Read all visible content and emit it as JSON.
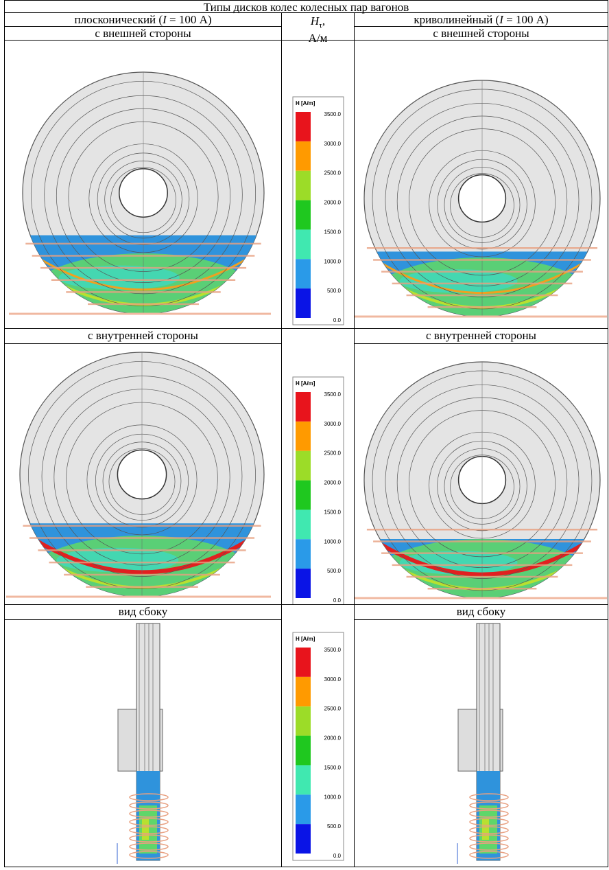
{
  "table": {
    "title": "Типы дисков колес колесных пар вагонов",
    "left_header": {
      "before": "плосконический (",
      "italic": "I",
      "after": " = 100 А)"
    },
    "right_header": {
      "before": "криволинейный (",
      "italic": "I",
      "after": " = 100 А)"
    },
    "middle_header": {
      "symbol": "H",
      "subscript": "τ",
      "after": ",",
      "unit": "А/м"
    },
    "rows": [
      {
        "left": "с внешней стороны",
        "right": "с внешней стороны"
      },
      {
        "left": "с внутренней стороны",
        "right": "с внутренней стороны"
      },
      {
        "left": "вид сбоку",
        "right": "вид сбоку"
      }
    ],
    "legends": [
      {
        "title": "H [A/m]",
        "labels": [
          "3500.0",
          "3000.0",
          "2500.0",
          "2000.0",
          "1500.0",
          "1000.0",
          "500.0",
          "0.0"
        ]
      },
      {
        "title": "H [A/m]",
        "labels": [
          "3500.0",
          "3000.0",
          "2500.0",
          "2000.0",
          "1500.0",
          "1000.0",
          "500.0",
          "0.0"
        ]
      },
      {
        "title": "H [A/m]",
        "labels": [
          "3500.0",
          "3000.0",
          "2500.0",
          "2000.0",
          "1500.0",
          "1000.0",
          "500.0",
          "0.0"
        ]
      }
    ]
  }
}
